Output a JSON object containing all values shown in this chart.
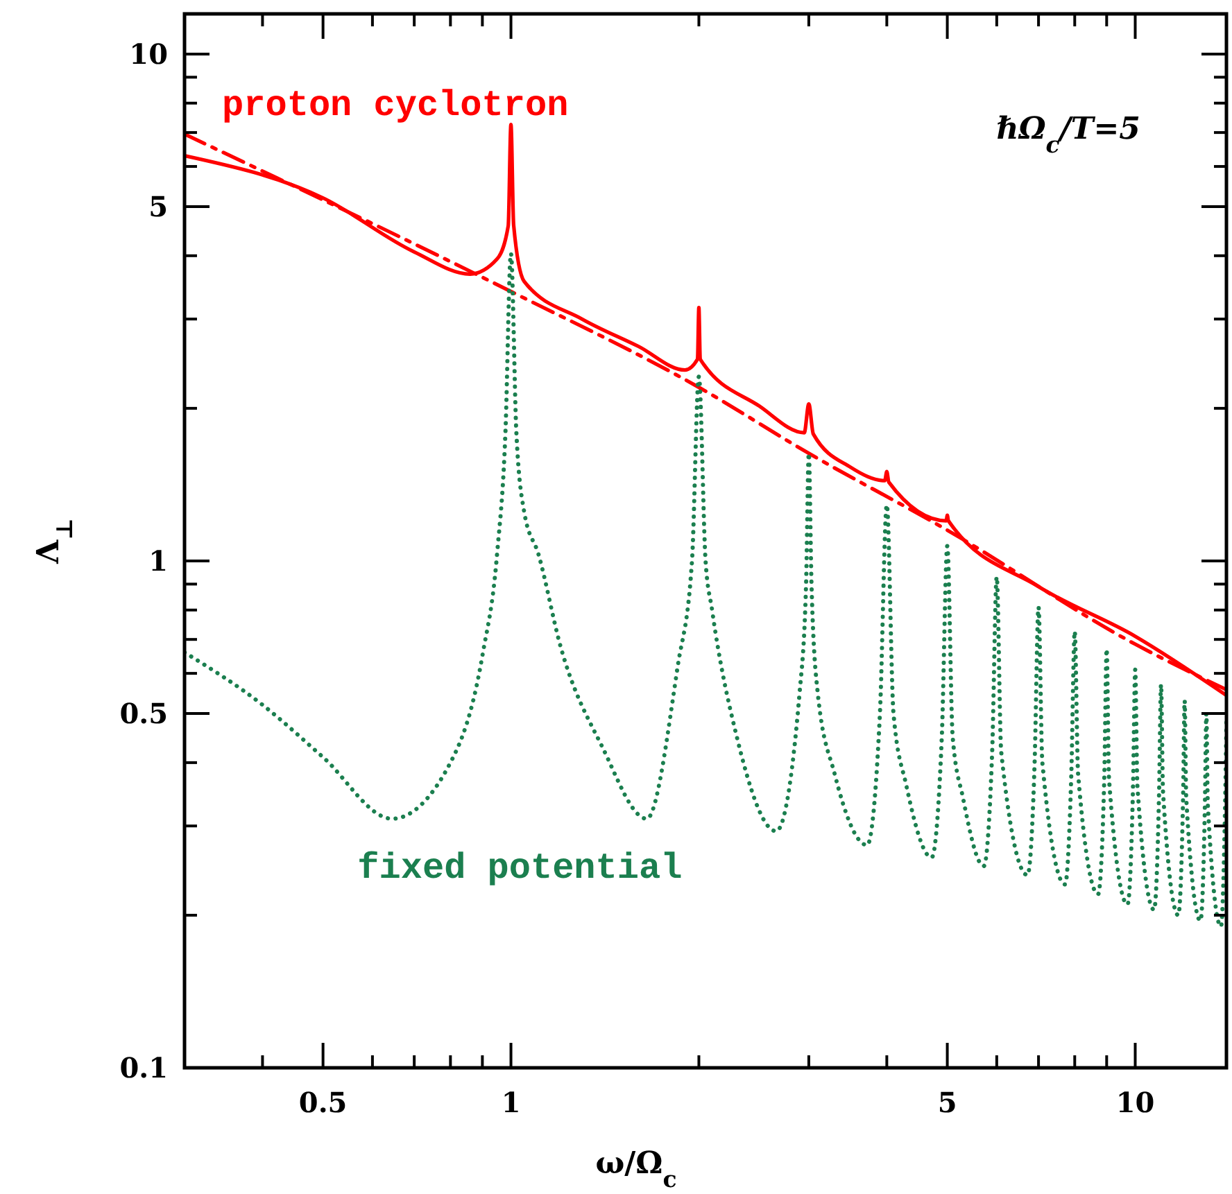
{
  "chart_data": {
    "type": "line",
    "xlabel": "ω/Ω$_{c}$",
    "ylabel": "Λ$_{⊥}$",
    "annotations": [
      "ℏΩ$_{c}$/T=5"
    ],
    "log": "xy",
    "xlim": [
      0.3,
      14
    ],
    "ylim": [
      0.1,
      12
    ],
    "xticks": [
      {
        "value": 0.4,
        "label": null
      },
      0.5,
      {
        "value": 0.6,
        "label": null
      },
      {
        "value": 0.7,
        "label": null
      },
      {
        "value": 0.8,
        "label": null
      },
      {
        "value": 0.9,
        "label": null
      },
      1,
      {
        "value": 2,
        "label": null
      },
      {
        "value": 3,
        "label": null
      },
      {
        "value": 4,
        "label": null
      },
      5,
      {
        "value": 6,
        "label": null
      },
      {
        "value": 7,
        "label": null
      },
      {
        "value": 8,
        "label": null
      },
      {
        "value": 9,
        "label": null
      },
      10
    ],
    "yticks": [
      0.1,
      {
        "value": 0.2,
        "label": null
      },
      {
        "value": 0.3,
        "label": null
      },
      {
        "value": 0.4,
        "label": null
      },
      0.5,
      {
        "value": 0.6,
        "label": null
      },
      {
        "value": 0.7,
        "label": null
      },
      {
        "value": 0.8,
        "label": null
      },
      {
        "value": 0.9,
        "label": null
      },
      1,
      {
        "value": 2,
        "label": null
      },
      {
        "value": 3,
        "label": null
      },
      {
        "value": 4,
        "label": null
      },
      5,
      {
        "value": 6,
        "label": null
      },
      {
        "value": 7,
        "label": null
      },
      {
        "value": 8,
        "label": null
      },
      {
        "value": 9,
        "label": null
      },
      10
    ],
    "grid": false,
    "marker": "none",
    "series": [
      {
        "name": "proton cyclotron",
        "color": "#ff0000",
        "line_style": "solid",
        "x": [
          0.3,
          0.5,
          0.7,
          0.86,
          0.95,
          0.99,
          1,
          1.01,
          1.05,
          1.3,
          1.6,
          1.9,
          1.99,
          2,
          2.01,
          2.5,
          2.95,
          3,
          3.05,
          3.5,
          3.97,
          4,
          4.03,
          4.98,
          5,
          5.02,
          7,
          10,
          14
        ],
        "values": [
          6.3,
          5.2,
          4.07,
          3.68,
          3.94,
          4.58,
          7.26,
          4.6,
          3.56,
          3.0,
          2.65,
          2.38,
          2.5,
          3.16,
          2.5,
          2.02,
          1.79,
          2.04,
          1.78,
          1.53,
          1.44,
          1.5,
          1.43,
          1.2,
          1.23,
          1.2,
          0.89,
          0.71,
          0.543
        ]
      },
      {
        "color": "#ff0000",
        "line_style": "dashed",
        "x": [
          0.3,
          1,
          2,
          3,
          5,
          10,
          14
        ],
        "values": [
          6.95,
          3.4,
          2.2,
          1.63,
          1.15,
          0.685,
          0.557
        ]
      },
      {
        "name": "fixed potential",
        "color": "#1b7f4f",
        "line_style": "dotted",
        "x": [
          0.3,
          0.4,
          0.5,
          0.645,
          0.8,
          0.9,
          0.95,
          0.98,
          1,
          1.02,
          1.05,
          1.107,
          1.2,
          1.4,
          1.65,
          1.85,
          1.95,
          2,
          2.05,
          2.1,
          2.3,
          2.66,
          2.9,
          2.97,
          3,
          3.03,
          3.1,
          3.3,
          3.72,
          3.9,
          4,
          4.1,
          4.3,
          4.72,
          4.9,
          5,
          5.1,
          5.3,
          5.72,
          5.9,
          6,
          6.1,
          6.72,
          6.9,
          7,
          7.1,
          7.72,
          7.9,
          8,
          8.1,
          8.72,
          8.92,
          9,
          9.08,
          9.72,
          9.92,
          10,
          10.08,
          10.72,
          10.92,
          11,
          11.08,
          11.72,
          11.93,
          12,
          12.07,
          12.72,
          12.93,
          13,
          13.07,
          13.72,
          13.93,
          14
        ],
        "values": [
          0.66,
          0.52,
          0.41,
          0.31,
          0.4,
          0.65,
          1.03,
          1.8,
          4.04,
          1.8,
          1.25,
          1.03,
          0.68,
          0.43,
          0.31,
          0.62,
          1.0,
          2.31,
          1.0,
          0.8,
          0.45,
          0.293,
          0.55,
          0.9,
          1.63,
          0.9,
          0.55,
          0.38,
          0.275,
          0.5,
          1.29,
          0.5,
          0.36,
          0.26,
          0.45,
          1.07,
          0.45,
          0.34,
          0.25,
          0.42,
          0.93,
          0.42,
          0.24,
          0.4,
          0.81,
          0.4,
          0.23,
          0.38,
          0.726,
          0.38,
          0.22,
          0.37,
          0.67,
          0.37,
          0.21,
          0.36,
          0.61,
          0.36,
          0.205,
          0.35,
          0.57,
          0.35,
          0.2,
          0.34,
          0.53,
          0.34,
          0.195,
          0.33,
          0.5,
          0.33,
          0.19,
          0.33,
          0.48
        ]
      }
    ]
  }
}
